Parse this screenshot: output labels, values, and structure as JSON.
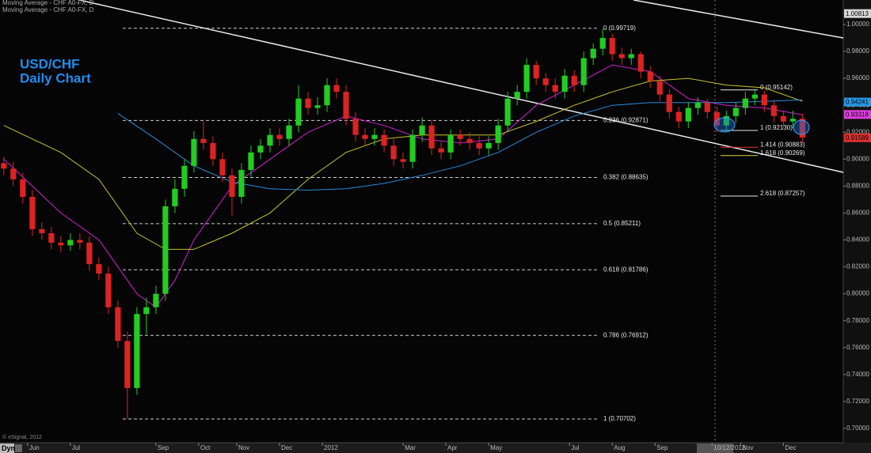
{
  "chart_data": {
    "type": "candlestick",
    "title": "USD/CHF",
    "subtitle": "Daily Chart",
    "legend": [
      "Moving Average - CHF A0-FX, D",
      "Moving Average - CHF A0-FX, D"
    ],
    "copyright": "© eSignal, 2012",
    "corner_label": "Dyn",
    "up_color": "#22cc22",
    "down_color": "#dd2222",
    "open": [
      0.897,
      0.893,
      0.885,
      0.872,
      0.848,
      0.845,
      0.838,
      0.836,
      0.84,
      0.838,
      0.822,
      0.815,
      0.79,
      0.765,
      0.73,
      0.785,
      0.79,
      0.8,
      0.865,
      0.878,
      0.895,
      0.915,
      0.912,
      0.9,
      0.888,
      0.872,
      0.892,
      0.905,
      0.91,
      0.918,
      0.915,
      0.925,
      0.945,
      0.938,
      0.94,
      0.955,
      0.95,
      0.93,
      0.918,
      0.915,
      0.918,
      0.91,
      0.9,
      0.898,
      0.918,
      0.925,
      0.908,
      0.905,
      0.918,
      0.915,
      0.912,
      0.908,
      0.912,
      0.925,
      0.945,
      0.95,
      0.97,
      0.96,
      0.955,
      0.95,
      0.962,
      0.955,
      0.975,
      0.982,
      0.99,
      0.978,
      0.975,
      0.978,
      0.965,
      0.958,
      0.948,
      0.935,
      0.928,
      0.938,
      0.942,
      0.935,
      0.925,
      0.932,
      0.938,
      0.945,
      0.948,
      0.94,
      0.932,
      0.928,
      0.93
    ],
    "high": [
      0.902,
      0.898,
      0.89,
      0.877,
      0.853,
      0.85,
      0.843,
      0.845,
      0.845,
      0.843,
      0.827,
      0.82,
      0.795,
      0.772,
      0.79,
      0.797,
      0.806,
      0.87,
      0.885,
      0.9,
      0.921,
      0.928,
      0.917,
      0.905,
      0.893,
      0.897,
      0.91,
      0.915,
      0.923,
      0.923,
      0.93,
      0.955,
      0.95,
      0.946,
      0.96,
      0.96,
      0.955,
      0.935,
      0.923,
      0.923,
      0.922,
      0.915,
      0.905,
      0.922,
      0.931,
      0.929,
      0.913,
      0.922,
      0.922,
      0.92,
      0.917,
      0.917,
      0.93,
      0.95,
      0.955,
      0.975,
      0.973,
      0.964,
      0.96,
      0.967,
      0.966,
      0.98,
      0.986,
      0.997,
      0.993,
      0.983,
      0.982,
      0.98,
      0.969,
      0.962,
      0.952,
      0.939,
      0.942,
      0.946,
      0.945,
      0.939,
      0.936,
      0.942,
      0.95,
      0.952,
      0.951,
      0.944,
      0.936,
      0.936,
      0.934
    ],
    "low": [
      0.888,
      0.88,
      0.867,
      0.843,
      0.84,
      0.833,
      0.831,
      0.832,
      0.833,
      0.817,
      0.81,
      0.785,
      0.76,
      0.707,
      0.725,
      0.77,
      0.785,
      0.795,
      0.86,
      0.872,
      0.89,
      0.907,
      0.895,
      0.883,
      0.858,
      0.867,
      0.887,
      0.9,
      0.905,
      0.91,
      0.91,
      0.92,
      0.933,
      0.933,
      0.935,
      0.945,
      0.925,
      0.913,
      0.91,
      0.91,
      0.905,
      0.895,
      0.893,
      0.893,
      0.913,
      0.903,
      0.9,
      0.9,
      0.91,
      0.907,
      0.903,
      0.903,
      0.907,
      0.92,
      0.94,
      0.945,
      0.955,
      0.95,
      0.945,
      0.945,
      0.95,
      0.95,
      0.97,
      0.977,
      0.973,
      0.97,
      0.97,
      0.96,
      0.953,
      0.943,
      0.93,
      0.923,
      0.923,
      0.933,
      0.93,
      0.92,
      0.92,
      0.927,
      0.933,
      0.94,
      0.935,
      0.927,
      0.923,
      0.923,
      0.912
    ],
    "close": [
      0.893,
      0.885,
      0.872,
      0.848,
      0.845,
      0.838,
      0.836,
      0.84,
      0.838,
      0.822,
      0.815,
      0.79,
      0.765,
      0.73,
      0.785,
      0.79,
      0.8,
      0.865,
      0.878,
      0.895,
      0.915,
      0.912,
      0.9,
      0.888,
      0.872,
      0.892,
      0.905,
      0.91,
      0.918,
      0.915,
      0.925,
      0.945,
      0.938,
      0.94,
      0.955,
      0.95,
      0.93,
      0.918,
      0.915,
      0.918,
      0.91,
      0.9,
      0.898,
      0.918,
      0.925,
      0.908,
      0.905,
      0.918,
      0.915,
      0.912,
      0.908,
      0.912,
      0.925,
      0.945,
      0.95,
      0.97,
      0.96,
      0.955,
      0.95,
      0.962,
      0.955,
      0.975,
      0.982,
      0.99,
      0.978,
      0.975,
      0.978,
      0.965,
      0.958,
      0.948,
      0.935,
      0.928,
      0.938,
      0.942,
      0.935,
      0.925,
      0.932,
      0.938,
      0.945,
      0.948,
      0.94,
      0.932,
      0.928,
      0.93,
      0.916
    ],
    "series": [
      {
        "color": "#d020d0",
        "x": [
          0,
          6,
          10,
          14,
          16,
          18,
          20,
          24,
          28,
          32,
          36,
          40,
          44,
          48,
          52,
          56,
          60,
          64,
          68,
          72,
          76,
          80,
          84
        ],
        "values": [
          0.9,
          0.86,
          0.84,
          0.8,
          0.79,
          0.81,
          0.84,
          0.88,
          0.9,
          0.92,
          0.932,
          0.925,
          0.915,
          0.912,
          0.915,
          0.94,
          0.955,
          0.97,
          0.965,
          0.945,
          0.94,
          0.938,
          0.933
        ]
      },
      {
        "color": "#c8c030",
        "x": [
          0,
          6,
          10,
          14,
          17,
          20,
          24,
          28,
          32,
          36,
          40,
          44,
          48,
          52,
          56,
          60,
          64,
          68,
          72,
          76,
          80,
          84
        ],
        "values": [
          0.925,
          0.905,
          0.885,
          0.845,
          0.833,
          0.833,
          0.845,
          0.86,
          0.885,
          0.905,
          0.915,
          0.918,
          0.918,
          0.918,
          0.928,
          0.94,
          0.95,
          0.958,
          0.96,
          0.955,
          0.953,
          0.943
        ]
      },
      {
        "color": "#2a8ad8",
        "x": [
          12,
          16,
          20,
          24,
          28,
          32,
          36,
          40,
          44,
          48,
          52,
          56,
          60,
          64,
          68,
          72,
          76,
          80,
          84
        ],
        "values": [
          0.934,
          0.915,
          0.895,
          0.883,
          0.878,
          0.877,
          0.878,
          0.882,
          0.888,
          0.895,
          0.905,
          0.92,
          0.932,
          0.94,
          0.942,
          0.942,
          0.942,
          0.943,
          0.944
        ]
      }
    ],
    "xlim": [
      -0.4,
      88.3
    ],
    "xticks": [
      {
        "value": 2.5,
        "label": "Jun"
      },
      {
        "value": 7,
        "label": "Jul"
      },
      {
        "value": 16,
        "label": "Sep"
      },
      {
        "value": 20.5,
        "label": "Oct"
      },
      {
        "value": 24.5,
        "label": "Nov"
      },
      {
        "value": 29,
        "label": "Dec"
      },
      {
        "value": 33.5,
        "label": "2012"
      },
      {
        "value": 42,
        "label": "Mar"
      },
      {
        "value": 46.5,
        "label": "Apr"
      },
      {
        "value": 51,
        "label": "May"
      },
      {
        "value": 59.5,
        "label": "Jul"
      },
      {
        "value": 64,
        "label": "Aug"
      },
      {
        "value": 68.5,
        "label": "Sep"
      },
      {
        "value": 74.5,
        "label": "10/12/2012"
      },
      {
        "value": 77.5,
        "label": "Nov"
      },
      {
        "value": 82,
        "label": "Dec"
      }
    ],
    "ylim": [
      0.6894,
      1.0182
    ],
    "yticks": [
      {
        "value": 0.7,
        "label": "0.70000"
      },
      {
        "value": 0.72,
        "label": "0.72000"
      },
      {
        "value": 0.74,
        "label": "0.74000"
      },
      {
        "value": 0.76,
        "label": "0.76000"
      },
      {
        "value": 0.78,
        "label": "0.78000"
      },
      {
        "value": 0.8,
        "label": "0.80000"
      },
      {
        "value": 0.82,
        "label": "0.82000"
      },
      {
        "value": 0.84,
        "label": "0.84000"
      },
      {
        "value": 0.86,
        "label": "0.86000"
      },
      {
        "value": 0.88,
        "label": "0.88000"
      },
      {
        "value": 0.9,
        "label": "0.90000"
      },
      {
        "value": 0.92,
        "label": "0.92000"
      },
      {
        "value": 0.94,
        "label": "0.94000"
      },
      {
        "value": 0.96,
        "label": "0.96000"
      },
      {
        "value": 0.98,
        "label": "0.98000"
      },
      {
        "value": 1.0,
        "label": "1.00000"
      }
    ],
    "fibonacci_retracement": [
      {
        "value": 0.99719,
        "label": "0 (0.99719)"
      },
      {
        "value": 0.92871,
        "label": "0.236 (0.92871)"
      },
      {
        "value": 0.88635,
        "label": "0.382 (0.88635)"
      },
      {
        "value": 0.85211,
        "label": "0.5 (0.85211)"
      },
      {
        "value": 0.81786,
        "label": "0.618 (0.81786)"
      },
      {
        "value": 0.76912,
        "label": "0.786 (0.76912)"
      },
      {
        "value": 0.70702,
        "label": "1 (0.70702)"
      }
    ],
    "fibonacci_extension": [
      {
        "value": 0.95142,
        "label": "0 (0.95142)",
        "color": "#e8e8e8"
      },
      {
        "value": 0.9213,
        "label": "1 (0.92130)",
        "color": "#e8e8e8"
      },
      {
        "value": 0.90883,
        "label": "1.414 (0.90883)",
        "color": "#e03030"
      },
      {
        "value": 0.90269,
        "label": "1.618 (0.90269)",
        "color": "#d8d040"
      },
      {
        "value": 0.87257,
        "label": "2.618 (0.87257)",
        "color": "#e8e8e8"
      }
    ],
    "price_markers": [
      {
        "value": 1.00813,
        "color": "#d8d8d8"
      },
      {
        "value": 0.94241,
        "color": "#2a9ae8"
      },
      {
        "value": 0.93318,
        "color": "#e040e0"
      },
      {
        "value": 0.91589,
        "color": "#e03030"
      }
    ]
  }
}
